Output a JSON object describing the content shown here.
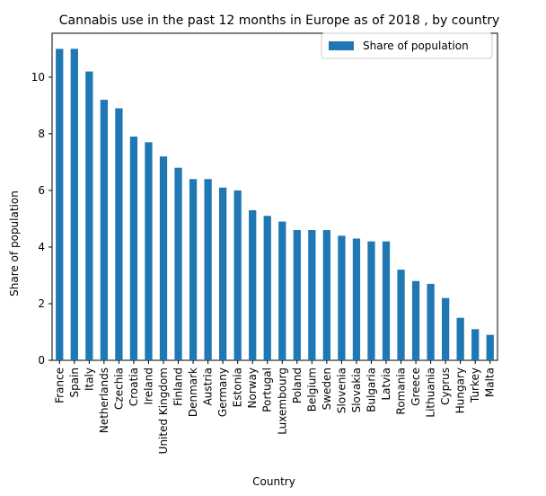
{
  "chart_data": {
    "type": "bar",
    "title": "Cannabis use in the past 12 months in Europe as of 2018  , by country",
    "xlabel": "Country",
    "ylabel": "Share of population",
    "ylim": [
      0,
      11.55
    ],
    "yticks": [
      0,
      2,
      4,
      6,
      8,
      10
    ],
    "grid": false,
    "legend_position": "top-right",
    "bar_color": "#1f77b4",
    "categories": [
      "France",
      "Spain",
      "Italy",
      "Netherlands",
      "Czechia",
      "Croatia",
      "Ireland",
      "United Kingdom",
      "Finland",
      "Denmark",
      "Austria",
      "Germany",
      "Estonia",
      "Norway",
      "Portugal",
      "Luxembourg",
      "Poland",
      "Belgium",
      "Sweden",
      "Slovenia",
      "Slovakia",
      "Bulgaria",
      "Latvia",
      "Romania",
      "Greece",
      "Lithuania",
      "Cyprus",
      "Hungary",
      "Turkey",
      "Malta"
    ],
    "series": [
      {
        "name": "Share of population",
        "values": [
          11.0,
          11.0,
          10.2,
          9.2,
          8.9,
          7.9,
          7.7,
          7.2,
          6.8,
          6.4,
          6.4,
          6.1,
          6.0,
          5.3,
          5.1,
          4.9,
          4.6,
          4.6,
          4.6,
          4.4,
          4.3,
          4.2,
          4.2,
          3.2,
          2.8,
          2.7,
          2.2,
          1.5,
          1.1,
          0.9
        ]
      }
    ]
  }
}
